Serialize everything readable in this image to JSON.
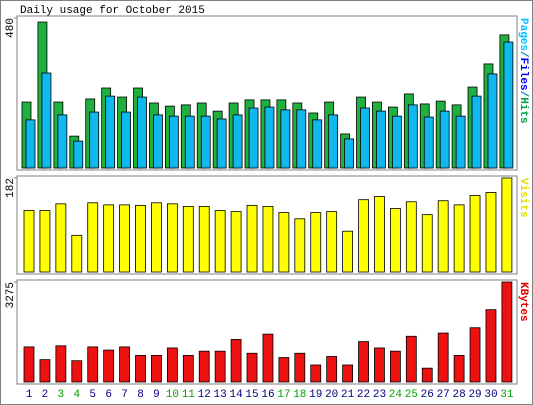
{
  "title": "Daily usage for October 2015",
  "chart_data": [
    {
      "type": "bar",
      "ylim": [
        0,
        480
      ],
      "yticks": [
        480
      ],
      "y_label": [
        "Pages",
        "/",
        "Files",
        "/",
        "Hits"
      ],
      "y_label_colors": [
        "#00c0ff",
        "#0080c0",
        "#0000ff",
        "#0080c0",
        "#00a040"
      ],
      "series": [
        {
          "name": "Hits",
          "color": "#20b040",
          "values": [
            211,
            467,
            211,
            102,
            221,
            256,
            227,
            256,
            208,
            198,
            202,
            208,
            182,
            208,
            218,
            218,
            218,
            208,
            176,
            211,
            109,
            227,
            211,
            195,
            237,
            205,
            214,
            202,
            259,
            333,
            426
          ]
        },
        {
          "name": "Pages",
          "color": "#10b8f0",
          "values": [
            154,
            304,
            170,
            86,
            179,
            230,
            179,
            227,
            170,
            166,
            166,
            166,
            157,
            170,
            192,
            195,
            186,
            186,
            154,
            170,
            93,
            192,
            182,
            166,
            202,
            163,
            182,
            166,
            230,
            301,
            403
          ]
        }
      ]
    },
    {
      "type": "bar",
      "ylim": [
        0,
        182
      ],
      "yticks": [
        182
      ],
      "y_label": [
        "Visits"
      ],
      "y_label_colors": [
        "#e0e000"
      ],
      "series": [
        {
          "name": "Visits",
          "color": "#ffff00",
          "values": [
            119,
            119,
            132,
            71,
            134,
            130,
            130,
            129,
            134,
            132,
            127,
            127,
            119,
            117,
            129,
            127,
            115,
            103,
            115,
            117,
            79,
            140,
            146,
            123,
            136,
            111,
            138,
            130,
            148,
            154,
            182
          ]
        }
      ]
    },
    {
      "type": "bar",
      "ylim": [
        0,
        3275
      ],
      "yticks": [
        3275
      ],
      "y_label": [
        "KBytes"
      ],
      "y_label_colors": [
        "#e00000"
      ],
      "series": [
        {
          "name": "KBytes",
          "color": "#ee1111",
          "values": [
            1150,
            732,
            1185,
            697,
            1150,
            1045,
            1150,
            871,
            871,
            1115,
            871,
            1010,
            1010,
            1394,
            941,
            1568,
            801,
            941,
            557,
            836,
            557,
            1324,
            1115,
            1010,
            1498,
            453,
            1603,
            871,
            1777,
            2369,
            3275
          ]
        }
      ],
      "categories": [
        "1",
        "2",
        "3",
        "4",
        "5",
        "6",
        "7",
        "8",
        "9",
        "10",
        "11",
        "12",
        "13",
        "14",
        "15",
        "16",
        "17",
        "18",
        "19",
        "20",
        "21",
        "22",
        "23",
        "24",
        "25",
        "26",
        "27",
        "28",
        "29",
        "30",
        "31"
      ],
      "category_colors": [
        "#000080",
        "#000080",
        "#00a000",
        "#00a000",
        "#000080",
        "#000080",
        "#000080",
        "#000080",
        "#000080",
        "#00a000",
        "#00a000",
        "#000080",
        "#000080",
        "#000080",
        "#000080",
        "#000080",
        "#00a000",
        "#00a000",
        "#000080",
        "#000080",
        "#000080",
        "#000080",
        "#000080",
        "#00a000",
        "#00a000",
        "#000080",
        "#000080",
        "#000080",
        "#000080",
        "#000080",
        "#00a000"
      ]
    }
  ]
}
